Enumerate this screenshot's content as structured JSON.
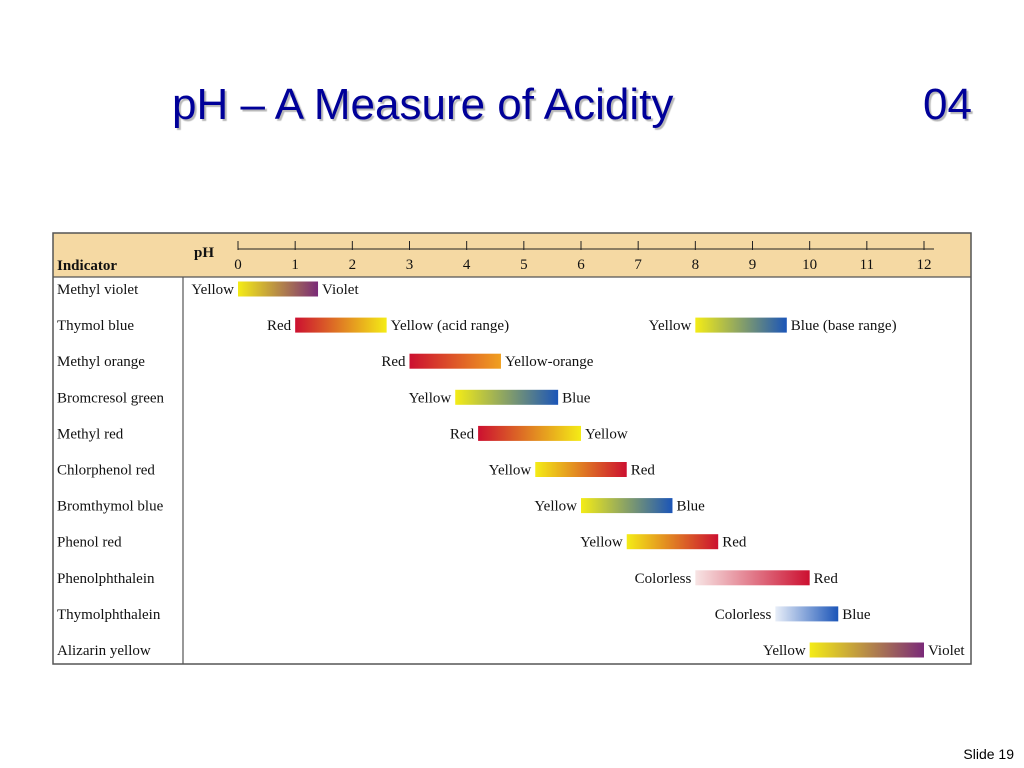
{
  "slide": {
    "title": "pH – A Measure of Acidity",
    "number": "04",
    "footer": "Slide 19"
  },
  "colors": {
    "header_bg": "#f5d9a3",
    "border": "#555555",
    "title": "#000099",
    "yellow": "#f4ec16",
    "red": "#cc1030",
    "violet": "#7a2a78",
    "blue": "#1b55b8",
    "orange": "#f0a020",
    "colorless": "#f7e4e4",
    "colorless_blue": "#e8eef8"
  },
  "chart_data": {
    "type": "table",
    "header": {
      "indicator_label": "Indicator",
      "ph_label": "pH"
    },
    "ph_ticks": [
      "0",
      "1",
      "2",
      "3",
      "4",
      "5",
      "6",
      "7",
      "8",
      "9",
      "10",
      "11",
      "12"
    ],
    "ph_range": [
      0,
      12
    ],
    "indicators": [
      {
        "name": "Methyl violet",
        "transitions": [
          {
            "from": 0.0,
            "to": 1.4,
            "low_label": "Yellow",
            "high_label": "Violet",
            "low_color": "#f4ec16",
            "high_color": "#7a2a78"
          }
        ]
      },
      {
        "name": "Thymol blue",
        "transitions": [
          {
            "from": 1.0,
            "to": 2.6,
            "low_label": "Red",
            "high_label": "Yellow (acid range)",
            "low_color": "#cc1030",
            "high_color": "#f4ec16"
          },
          {
            "from": 8.0,
            "to": 9.6,
            "low_label": "Yellow",
            "high_label": "Blue (base range)",
            "low_color": "#f4ec16",
            "high_color": "#1b55b8"
          }
        ]
      },
      {
        "name": "Methyl orange",
        "transitions": [
          {
            "from": 3.0,
            "to": 4.6,
            "low_label": "Red",
            "high_label": "Yellow-orange",
            "low_color": "#cc1030",
            "high_color": "#f0a020"
          }
        ]
      },
      {
        "name": "Bromcresol green",
        "transitions": [
          {
            "from": 3.8,
            "to": 5.6,
            "low_label": "Yellow",
            "high_label": "Blue",
            "low_color": "#f4ec16",
            "high_color": "#1b55b8"
          }
        ]
      },
      {
        "name": "Methyl red",
        "transitions": [
          {
            "from": 4.2,
            "to": 6.0,
            "low_label": "Red",
            "high_label": "Yellow",
            "low_color": "#cc1030",
            "high_color": "#f4ec16"
          }
        ]
      },
      {
        "name": "Chlorphenol red",
        "transitions": [
          {
            "from": 5.2,
            "to": 6.8,
            "low_label": "Yellow",
            "high_label": "Red",
            "low_color": "#f4ec16",
            "high_color": "#cc1030"
          }
        ]
      },
      {
        "name": "Bromthymol blue",
        "transitions": [
          {
            "from": 6.0,
            "to": 7.6,
            "low_label": "Yellow",
            "high_label": "Blue",
            "low_color": "#f4ec16",
            "high_color": "#1b55b8"
          }
        ]
      },
      {
        "name": "Phenol red",
        "transitions": [
          {
            "from": 6.8,
            "to": 8.4,
            "low_label": "Yellow",
            "high_label": "Red",
            "low_color": "#f4ec16",
            "high_color": "#cc1030"
          }
        ]
      },
      {
        "name": "Phenolphthalein",
        "transitions": [
          {
            "from": 8.0,
            "to": 10.0,
            "low_label": "Colorless",
            "high_label": "Red",
            "low_color": "#f7e4e4",
            "high_color": "#cc1030"
          }
        ]
      },
      {
        "name": "Thymolphthalein",
        "transitions": [
          {
            "from": 9.4,
            "to": 10.5,
            "low_label": "Colorless",
            "high_label": "Blue",
            "low_color": "#e8eef8",
            "high_color": "#1b55b8"
          }
        ]
      },
      {
        "name": "Alizarin yellow",
        "transitions": [
          {
            "from": 10.0,
            "to": 12.0,
            "low_label": "Yellow",
            "high_label": "Violet",
            "low_color": "#f4ec16",
            "high_color": "#7a2a78"
          }
        ]
      }
    ]
  }
}
